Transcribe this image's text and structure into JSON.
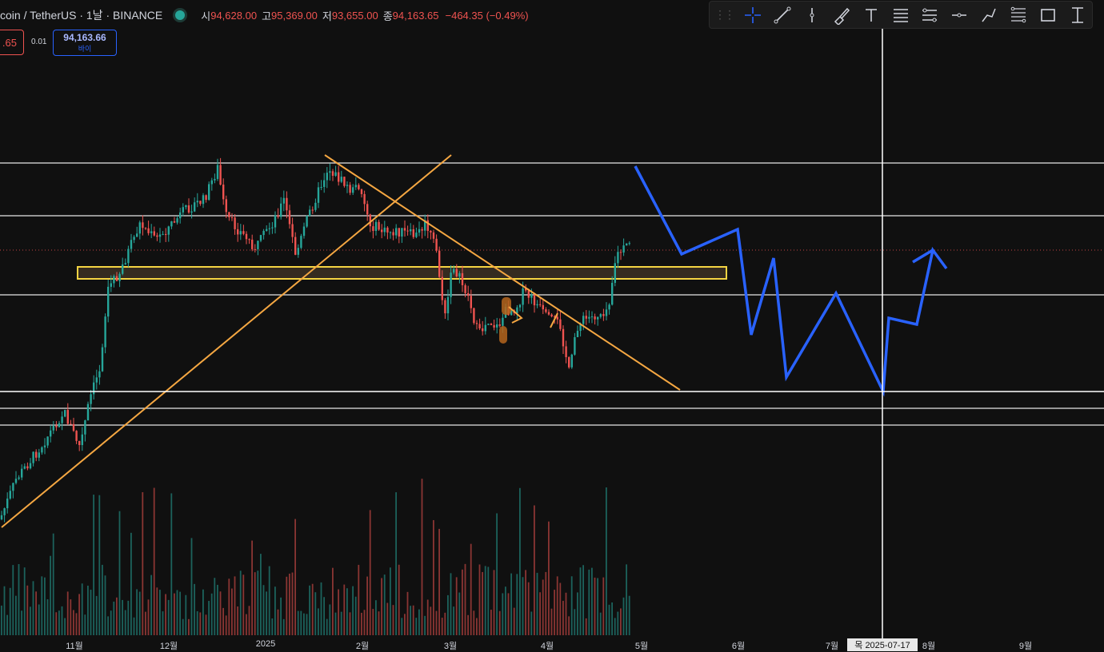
{
  "header": {
    "symbol": "coin / TetherUS · 1날 · BINANCE",
    "open_label": "시",
    "open": "94,628.00",
    "high_label": "고",
    "high": "95,369.00",
    "low_label": "저",
    "low": "93,655.00",
    "close_label": "종",
    "close": "94,163.65",
    "change": "−464.35 (−0.49%)"
  },
  "trade": {
    "sell_price": ".65",
    "spread": "0.01",
    "buy_price": "94,163.66",
    "buy_label": "바이"
  },
  "toolbar": {
    "tools": [
      "crosshair-icon",
      "trend-line-icon",
      "vertical-line-icon",
      "brush-icon",
      "text-icon",
      "fib-retracement-icon",
      "channel-icon",
      "horizontal-ray-icon",
      "path-icon",
      "gann-icon",
      "rectangle-icon",
      "measure-icon"
    ]
  },
  "axis": {
    "x_labels": [
      "11월",
      "12월",
      "2025",
      "2월",
      "3월",
      "4월",
      "5월",
      "6월",
      "7월",
      "8월",
      "9월"
    ],
    "crosshair_date": "목  2025-07-17"
  },
  "colors": {
    "up": "#26a69a",
    "down": "#ef5350",
    "trendline": "#f5a742",
    "zone": "#f5d442",
    "projection": "#2962ff"
  },
  "chart_data": {
    "type": "candlestick",
    "symbol": "coin / TetherUS",
    "interval": "1날",
    "exchange": "BINANCE",
    "last_price": 94163.65,
    "x_range": [
      "2024-10-05",
      "2025-09-20"
    ],
    "horizontal_levels": 6,
    "highlight_zone": true,
    "trendlines": 2,
    "projection_path": "zigzag",
    "volume_bars": true
  }
}
